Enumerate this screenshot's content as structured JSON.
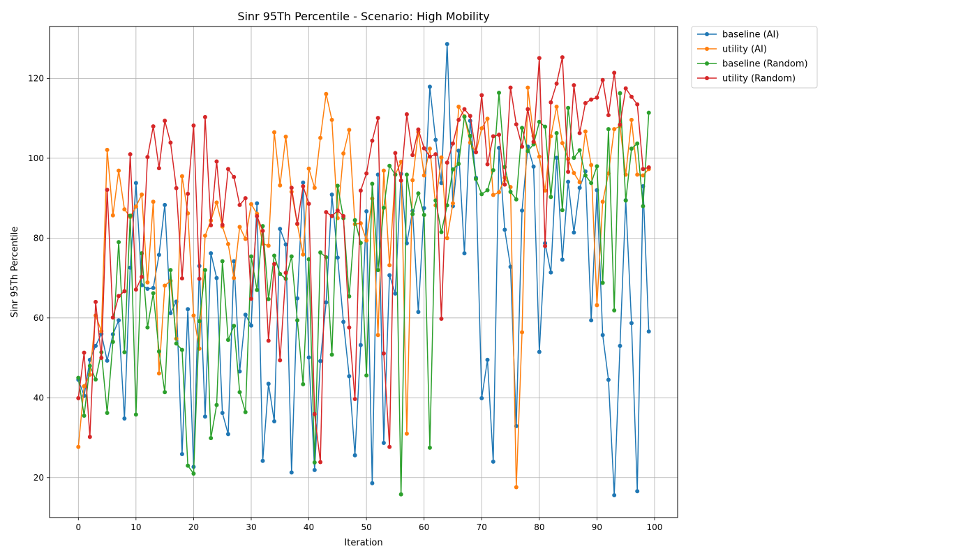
{
  "chart_data": {
    "type": "line",
    "title": "Sinr 95Th Percentile - Scenario: High Mobility",
    "xlabel": "Iteration",
    "ylabel": "Sinr 95Th Percentile",
    "xlim": [
      -5,
      104
    ],
    "ylim": [
      10,
      133
    ],
    "xticks": [
      0,
      10,
      20,
      30,
      40,
      50,
      60,
      70,
      80,
      90,
      100
    ],
    "yticks": [
      20,
      40,
      60,
      80,
      100,
      120
    ],
    "grid": true,
    "legend_position": "outside-top-right",
    "series": [
      {
        "name": "baseline (AI)",
        "color": "#1f77b4",
        "values": [
          44.5,
          40.5,
          49.5,
          53.0,
          56.0,
          49.3,
          55.9,
          59.4,
          34.8,
          72.6,
          93.8,
          68.2,
          67.3,
          67.5,
          75.8,
          88.3,
          61.2,
          64.1,
          25.9,
          62.2,
          22.7,
          73.0,
          35.3,
          76.2,
          70.0,
          36.2,
          30.9,
          74.2,
          46.6,
          60.8,
          58.1,
          88.7,
          24.2,
          43.5,
          34.1,
          82.3,
          78.4,
          21.3,
          64.9,
          93.9,
          50.1,
          21.9,
          49.2,
          63.9,
          90.9,
          75.1,
          59.0,
          45.4,
          25.6,
          53.2,
          86.7,
          18.6,
          95.9,
          28.7,
          70.7,
          66.1,
          96.1,
          78.7,
          86.8,
          61.5,
          87.5,
          117.9,
          104.6,
          93.8,
          128.6,
          88.0,
          101.9,
          76.2,
          109.4,
          95.1,
          39.9,
          49.5,
          24.0,
          102.6,
          82.1,
          72.8,
          32.9,
          86.9,
          102.9,
          97.9,
          51.5,
          78.7,
          71.4,
          100.1,
          74.6,
          94.1,
          81.4,
          92.6,
          96.7,
          59.4,
          92.0,
          55.7,
          44.5,
          15.6,
          53.0,
          89.5,
          58.7,
          16.6,
          93.0,
          56.6
        ]
      },
      {
        "name": "utility (AI)",
        "color": "#ff7f0e",
        "values": [
          27.7,
          42.9,
          45.8,
          60.6,
          56.7,
          102.1,
          85.7,
          96.9,
          87.2,
          85.3,
          87.9,
          90.9,
          68.9,
          89.1,
          46.1,
          68.1,
          69.3,
          54.8,
          95.5,
          86.2,
          60.6,
          52.3,
          80.6,
          84.4,
          88.9,
          82.9,
          78.5,
          70.0,
          82.8,
          79.8,
          88.5,
          86.1,
          78.6,
          78.1,
          106.5,
          93.2,
          105.4,
          91.6,
          83.5,
          75.9,
          97.4,
          92.6,
          105.1,
          116.1,
          109.6,
          85.0,
          101.2,
          107.1,
          83.5,
          83.7,
          79.4,
          89.9,
          55.7,
          96.9,
          73.2,
          95.9,
          99.1,
          31.0,
          94.5,
          106.6,
          95.7,
          102.4,
          88.2,
          100.2,
          80.0,
          88.7,
          112.9,
          110.5,
          103.9,
          101.5,
          107.5,
          109.9,
          90.8,
          91.5,
          95.1,
          92.8,
          17.6,
          56.4,
          117.7,
          105.6,
          100.4,
          91.9,
          105.5,
          112.9,
          103.8,
          99.8,
          96.3,
          94.0,
          106.7,
          98.3,
          63.2,
          89.1,
          96.2,
          107.3,
          108.0,
          95.9,
          109.6,
          95.9,
          95.7,
          97.3
        ]
      },
      {
        "name": "baseline (Random)",
        "color": "#2ca02c",
        "values": [
          45.0,
          35.5,
          48.0,
          44.6,
          51.4,
          36.2,
          54.0,
          79.0,
          51.4,
          85.6,
          35.8,
          76.2,
          57.6,
          66.2,
          51.6,
          41.4,
          72.0,
          53.6,
          52.0,
          23.0,
          21.0,
          59.2,
          72.0,
          29.9,
          38.2,
          74.2,
          54.5,
          58.0,
          41.4,
          36.4,
          75.4,
          67.0,
          83.0,
          64.7,
          75.6,
          71.0,
          69.8,
          75.4,
          59.4,
          43.4,
          74.7,
          23.8,
          76.4,
          75.2,
          50.8,
          93.1,
          85.0,
          65.4,
          84.5,
          78.8,
          45.6,
          93.6,
          72.0,
          87.6,
          98.1,
          95.9,
          15.8,
          95.9,
          86.0,
          91.2,
          85.8,
          27.5,
          89.4,
          81.5,
          88.2,
          97.2,
          98.6,
          110.4,
          105.6,
          94.8,
          91.0,
          92.0,
          97.0,
          116.4,
          97.8,
          91.6,
          89.7,
          107.6,
          101.8,
          103.5,
          109.1,
          107.9,
          90.3,
          106.3,
          87.0,
          112.6,
          100.1,
          102.0,
          95.7,
          93.8,
          98.0,
          68.8,
          107.3,
          61.9,
          116.3,
          89.4,
          102.4,
          103.7,
          88.0,
          111.4
        ]
      },
      {
        "name": "utility (Random)",
        "color": "#d62728",
        "values": [
          39.9,
          51.3,
          30.2,
          64.0,
          50.0,
          92.1,
          60.1,
          65.5,
          66.7,
          101.0,
          67.1,
          70.3,
          100.3,
          108.0,
          97.5,
          109.4,
          103.9,
          92.5,
          69.9,
          91.1,
          108.2,
          69.8,
          110.3,
          83.2,
          99.2,
          83.3,
          97.3,
          95.3,
          88.3,
          90.0,
          64.8,
          85.5,
          81.8,
          54.3,
          73.5,
          49.4,
          71.3,
          92.6,
          83.6,
          93.0,
          88.6,
          35.9,
          23.9,
          86.5,
          85.5,
          86.9,
          85.5,
          57.6,
          39.7,
          91.9,
          96.2,
          104.4,
          110.1,
          51.1,
          27.7,
          101.3,
          94.4,
          111.0,
          100.8,
          107.2,
          102.5,
          100.4,
          101.0,
          59.8,
          98.9,
          103.7,
          109.6,
          112.3,
          110.6,
          101.5,
          115.8,
          98.5,
          105.5,
          105.9,
          93.4,
          117.7,
          108.5,
          102.9,
          112.3,
          104.1,
          125.1,
          78.0,
          114.0,
          118.7,
          125.3,
          96.6,
          118.3,
          106.3,
          113.8,
          114.7,
          115.2,
          119.6,
          110.8,
          121.4,
          108.4,
          117.5,
          115.4,
          113.5,
          97.3,
          97.7
        ]
      }
    ]
  }
}
